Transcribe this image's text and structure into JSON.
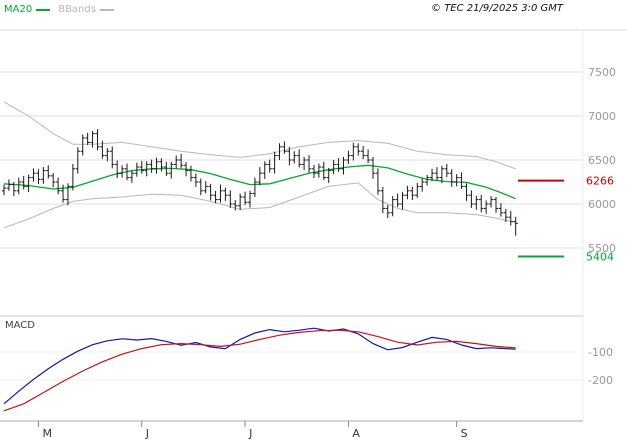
{
  "header": {
    "ma_label": "MA20",
    "bbands_label": "BBands",
    "copyright": "© TEC 21/9/2025 3:0 GMT"
  },
  "chart_data": {
    "type": "candlestick",
    "indicators": [
      "MA20",
      "BBands",
      "MACD"
    ],
    "colors": {
      "ma": "#00aa33",
      "bbands": "#b8b8b8",
      "candle": "#1a1a1a",
      "grid": "#e2e2e2",
      "axis_text": "#999999",
      "macd_line": "#1515b5",
      "signal_line": "#c01515"
    },
    "price_axis": {
      "ticks": [
        7500,
        7000,
        6500,
        6000,
        5500
      ],
      "ylim": [
        5300,
        7750
      ]
    },
    "x_axis": {
      "months": [
        {
          "i": 7,
          "label": "M"
        },
        {
          "i": 28,
          "label": "J"
        },
        {
          "i": 49,
          "label": "J"
        },
        {
          "i": 70,
          "label": "A"
        },
        {
          "i": 92,
          "label": "S"
        }
      ]
    },
    "levels": {
      "resistance": {
        "value": 6266,
        "color": "#cc0000"
      },
      "support": {
        "value": 5404,
        "color": "#00aa33"
      }
    },
    "candles_ohlc": [
      [
        6150,
        6220,
        6100,
        6180
      ],
      [
        6180,
        6280,
        6150,
        6220
      ],
      [
        6220,
        6250,
        6090,
        6150
      ],
      [
        6150,
        6300,
        6110,
        6250
      ],
      [
        6250,
        6320,
        6165,
        6200
      ],
      [
        6200,
        6335,
        6135,
        6300
      ],
      [
        6300,
        6405,
        6255,
        6350
      ],
      [
        6350,
        6395,
        6225,
        6280
      ],
      [
        6280,
        6420,
        6230,
        6380
      ],
      [
        6380,
        6440,
        6290,
        6320
      ],
      [
        6320,
        6350,
        6190,
        6250
      ],
      [
        6250,
        6300,
        6110,
        6150
      ],
      [
        6150,
        6220,
        6015,
        6050
      ],
      [
        6050,
        6235,
        5985,
        6200
      ],
      [
        6200,
        6455,
        6155,
        6400
      ],
      [
        6400,
        6645,
        6345,
        6600
      ],
      [
        6600,
        6790,
        6550,
        6750
      ],
      [
        6750,
        6810,
        6670,
        6700
      ],
      [
        6700,
        6830,
        6640,
        6800
      ],
      [
        6800,
        6850,
        6610,
        6650
      ],
      [
        6650,
        6720,
        6515,
        6550
      ],
      [
        6550,
        6635,
        6485,
        6600
      ],
      [
        6600,
        6655,
        6405,
        6450
      ],
      [
        6450,
        6495,
        6295,
        6350
      ],
      [
        6350,
        6440,
        6300,
        6400
      ],
      [
        6400,
        6460,
        6270,
        6300
      ],
      [
        6300,
        6380,
        6240,
        6350
      ],
      [
        6350,
        6470,
        6310,
        6420
      ],
      [
        6420,
        6490,
        6345,
        6380
      ],
      [
        6380,
        6485,
        6315,
        6450
      ],
      [
        6450,
        6505,
        6355,
        6400
      ],
      [
        6400,
        6525,
        6345,
        6480
      ],
      [
        6480,
        6520,
        6370,
        6420
      ],
      [
        6420,
        6480,
        6320,
        6350
      ],
      [
        6350,
        6480,
        6290,
        6450
      ],
      [
        6450,
        6550,
        6405,
        6500
      ],
      [
        6500,
        6570,
        6405,
        6440
      ],
      [
        6440,
        6475,
        6315,
        6380
      ],
      [
        6380,
        6435,
        6255,
        6300
      ],
      [
        6300,
        6345,
        6195,
        6250
      ],
      [
        6250,
        6290,
        6100,
        6150
      ],
      [
        6150,
        6260,
        6120,
        6200
      ],
      [
        6200,
        6230,
        6040,
        6100
      ],
      [
        6100,
        6150,
        6010,
        6050
      ],
      [
        6050,
        6220,
        6015,
        6150
      ],
      [
        6150,
        6185,
        6035,
        6100
      ],
      [
        6100,
        6155,
        5955,
        6000
      ],
      [
        6000,
        6045,
        5925,
        5980
      ],
      [
        5980,
        6120,
        5930,
        6080
      ],
      [
        6080,
        6140,
        5990,
        6020
      ],
      [
        6020,
        6150,
        5960,
        6120
      ],
      [
        6120,
        6300,
        6080,
        6250
      ],
      [
        6250,
        6420,
        6215,
        6350
      ],
      [
        6350,
        6485,
        6285,
        6450
      ],
      [
        6450,
        6505,
        6355,
        6400
      ],
      [
        6400,
        6595,
        6345,
        6550
      ],
      [
        6550,
        6690,
        6500,
        6650
      ],
      [
        6650,
        6710,
        6570,
        6600
      ],
      [
        6600,
        6650,
        6440,
        6500
      ],
      [
        6500,
        6600,
        6460,
        6550
      ],
      [
        6550,
        6620,
        6415,
        6450
      ],
      [
        6450,
        6535,
        6385,
        6500
      ],
      [
        6500,
        6555,
        6355,
        6400
      ],
      [
        6400,
        6445,
        6295,
        6350
      ],
      [
        6350,
        6460,
        6300,
        6420
      ],
      [
        6420,
        6480,
        6270,
        6300
      ],
      [
        6300,
        6410,
        6240,
        6380
      ],
      [
        6380,
        6500,
        6340,
        6450
      ],
      [
        6450,
        6520,
        6365,
        6400
      ],
      [
        6400,
        6535,
        6335,
        6500
      ],
      [
        6500,
        6605,
        6455,
        6550
      ],
      [
        6550,
        6695,
        6495,
        6650
      ],
      [
        6650,
        6690,
        6550,
        6600
      ],
      [
        6600,
        6660,
        6510,
        6550
      ],
      [
        6550,
        6620,
        6465,
        6500
      ],
      [
        6500,
        6535,
        6285,
        6350
      ],
      [
        6350,
        6405,
        6105,
        6150
      ],
      [
        6150,
        6195,
        5895,
        5950
      ],
      [
        5950,
        5990,
        5840,
        5900
      ],
      [
        5900,
        6090,
        5860,
        6050
      ],
      [
        6050,
        6120,
        5965,
        6000
      ],
      [
        6000,
        6135,
        5935,
        6100
      ],
      [
        6100,
        6205,
        6055,
        6150
      ],
      [
        6150,
        6195,
        6045,
        6100
      ],
      [
        6100,
        6240,
        6070,
        6200
      ],
      [
        6200,
        6290,
        6140,
        6250
      ],
      [
        6250,
        6330,
        6210,
        6300
      ],
      [
        6300,
        6400,
        6260,
        6350
      ],
      [
        6350,
        6420,
        6265,
        6300
      ],
      [
        6300,
        6435,
        6235,
        6400
      ],
      [
        6400,
        6455,
        6305,
        6350
      ],
      [
        6350,
        6395,
        6195,
        6250
      ],
      [
        6250,
        6340,
        6200,
        6300
      ],
      [
        6300,
        6360,
        6170,
        6200
      ],
      [
        6200,
        6235,
        6035,
        6100
      ],
      [
        6100,
        6155,
        5955,
        6000
      ],
      [
        6000,
        6095,
        5935,
        6050
      ],
      [
        6050,
        6105,
        5905,
        5950
      ],
      [
        5950,
        6040,
        5890,
        6000
      ],
      [
        6000,
        6090,
        5960,
        6050
      ],
      [
        6050,
        6080,
        5900,
        5950
      ],
      [
        5950,
        6010,
        5855,
        5900
      ],
      [
        5900,
        5945,
        5795,
        5850
      ],
      [
        5850,
        5920,
        5755,
        5800
      ],
      [
        5800,
        5855,
        5640,
        5780
      ]
    ],
    "ma20": [
      [
        0,
        6230
      ],
      [
        5,
        6210
      ],
      [
        10,
        6170
      ],
      [
        14,
        6190
      ],
      [
        18,
        6260
      ],
      [
        22,
        6330
      ],
      [
        26,
        6380
      ],
      [
        30,
        6400
      ],
      [
        34,
        6405
      ],
      [
        38,
        6390
      ],
      [
        42,
        6345
      ],
      [
        46,
        6280
      ],
      [
        50,
        6220
      ],
      [
        54,
        6230
      ],
      [
        58,
        6290
      ],
      [
        62,
        6350
      ],
      [
        66,
        6390
      ],
      [
        70,
        6420
      ],
      [
        74,
        6440
      ],
      [
        78,
        6410
      ],
      [
        82,
        6340
      ],
      [
        86,
        6280
      ],
      [
        90,
        6255
      ],
      [
        94,
        6245
      ],
      [
        98,
        6190
      ],
      [
        101,
        6130
      ],
      [
        104,
        6060
      ]
    ],
    "bb_upper": [
      [
        0,
        7160
      ],
      [
        5,
        7000
      ],
      [
        10,
        6800
      ],
      [
        14,
        6680
      ],
      [
        18,
        6680
      ],
      [
        24,
        6700
      ],
      [
        30,
        6650
      ],
      [
        36,
        6600
      ],
      [
        42,
        6560
      ],
      [
        48,
        6530
      ],
      [
        54,
        6570
      ],
      [
        60,
        6650
      ],
      [
        66,
        6700
      ],
      [
        72,
        6720
      ],
      [
        78,
        6690
      ],
      [
        84,
        6600
      ],
      [
        90,
        6560
      ],
      [
        96,
        6540
      ],
      [
        100,
        6480
      ],
      [
        104,
        6400
      ]
    ],
    "bb_lower": [
      [
        0,
        5730
      ],
      [
        5,
        5830
      ],
      [
        10,
        5950
      ],
      [
        14,
        6030
      ],
      [
        18,
        6060
      ],
      [
        24,
        6080
      ],
      [
        30,
        6110
      ],
      [
        36,
        6100
      ],
      [
        42,
        6030
      ],
      [
        48,
        5940
      ],
      [
        54,
        5960
      ],
      [
        60,
        6080
      ],
      [
        66,
        6200
      ],
      [
        72,
        6240
      ],
      [
        76,
        6050
      ],
      [
        80,
        5950
      ],
      [
        84,
        5900
      ],
      [
        90,
        5900
      ],
      [
        96,
        5880
      ],
      [
        100,
        5840
      ],
      [
        104,
        5790
      ]
    ],
    "macd": {
      "label": "MACD",
      "ticks": [
        -100,
        -200
      ],
      "ylim": [
        -340,
        25
      ],
      "macd_line": [
        [
          0,
          -285
        ],
        [
          3,
          -240
        ],
        [
          6,
          -198
        ],
        [
          9,
          -160
        ],
        [
          12,
          -126
        ],
        [
          15,
          -97
        ],
        [
          18,
          -74
        ],
        [
          21,
          -60
        ],
        [
          24,
          -53
        ],
        [
          27,
          -57
        ],
        [
          30,
          -52
        ],
        [
          33,
          -62
        ],
        [
          36,
          -76
        ],
        [
          39,
          -66
        ],
        [
          42,
          -82
        ],
        [
          45,
          -88
        ],
        [
          48,
          -55
        ],
        [
          51,
          -32
        ],
        [
          54,
          -20
        ],
        [
          57,
          -28
        ],
        [
          60,
          -22
        ],
        [
          63,
          -15
        ],
        [
          66,
          -25
        ],
        [
          69,
          -18
        ],
        [
          72,
          -35
        ],
        [
          75,
          -70
        ],
        [
          78,
          -92
        ],
        [
          81,
          -84
        ],
        [
          84,
          -65
        ],
        [
          87,
          -48
        ],
        [
          90,
          -55
        ],
        [
          93,
          -75
        ],
        [
          96,
          -88
        ],
        [
          99,
          -85
        ],
        [
          102,
          -88
        ],
        [
          104,
          -90
        ]
      ],
      "signal_line": [
        [
          0,
          -310
        ],
        [
          4,
          -285
        ],
        [
          8,
          -245
        ],
        [
          12,
          -205
        ],
        [
          16,
          -168
        ],
        [
          20,
          -135
        ],
        [
          24,
          -108
        ],
        [
          28,
          -88
        ],
        [
          32,
          -74
        ],
        [
          36,
          -70
        ],
        [
          40,
          -74
        ],
        [
          44,
          -80
        ],
        [
          48,
          -72
        ],
        [
          52,
          -55
        ],
        [
          56,
          -40
        ],
        [
          60,
          -30
        ],
        [
          64,
          -24
        ],
        [
          68,
          -22
        ],
        [
          72,
          -28
        ],
        [
          76,
          -45
        ],
        [
          80,
          -65
        ],
        [
          84,
          -75
        ],
        [
          88,
          -65
        ],
        [
          92,
          -62
        ],
        [
          96,
          -70
        ],
        [
          100,
          -80
        ],
        [
          104,
          -85
        ]
      ]
    }
  }
}
